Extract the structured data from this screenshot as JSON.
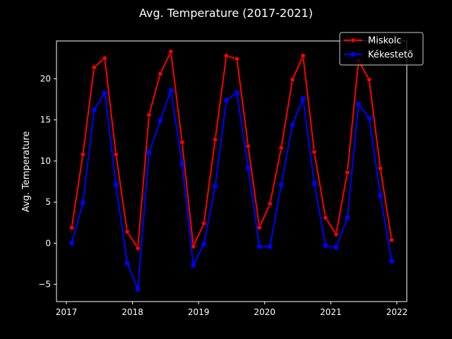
{
  "chart_data": {
    "type": "line",
    "title": "Avg. Temperature (2017-2021)",
    "xlabel": "",
    "ylabel": "Avg. Temperature",
    "xlim": [
      2016.85,
      2022.15
    ],
    "ylim": [
      -7.1,
      24.6
    ],
    "x_ticks": [
      2017,
      2018,
      2019,
      2020,
      2021,
      2022
    ],
    "y_ticks": [
      -5,
      0,
      5,
      10,
      15,
      20
    ],
    "grid": false,
    "legend_position": "top-right",
    "x": [
      2017.08,
      2017.25,
      2017.42,
      2017.58,
      2017.75,
      2017.92,
      2018.08,
      2018.25,
      2018.42,
      2018.58,
      2018.75,
      2018.92,
      2019.08,
      2019.25,
      2019.42,
      2019.58,
      2019.75,
      2019.92,
      2020.08,
      2020.25,
      2020.42,
      2020.58,
      2020.75,
      2020.92,
      2021.08,
      2021.25,
      2021.42,
      2021.58,
      2021.75,
      2021.92
    ],
    "series": [
      {
        "name": "Miskolc",
        "color": "#ff0000",
        "marker": "circle",
        "values": [
          1.9,
          10.8,
          21.4,
          22.5,
          10.8,
          1.4,
          -0.6,
          15.6,
          20.6,
          23.3,
          12.3,
          -0.4,
          2.4,
          12.6,
          22.8,
          22.4,
          11.8,
          1.9,
          4.8,
          11.6,
          19.9,
          22.8,
          11.1,
          3.1,
          1.1,
          8.6,
          22.2,
          19.9,
          9.1,
          0.4
        ]
      },
      {
        "name": "Kékestetõ",
        "color": "#0000ff",
        "marker": "square",
        "values": [
          0.0,
          4.9,
          16.2,
          18.3,
          7.1,
          -2.4,
          -5.6,
          11.0,
          14.9,
          18.6,
          9.6,
          -2.7,
          -0.1,
          6.9,
          17.4,
          18.3,
          9.1,
          -0.4,
          -0.4,
          7.1,
          14.4,
          17.6,
          7.3,
          -0.3,
          -0.5,
          3.1,
          16.9,
          15.2,
          5.8,
          -2.2
        ]
      }
    ]
  }
}
